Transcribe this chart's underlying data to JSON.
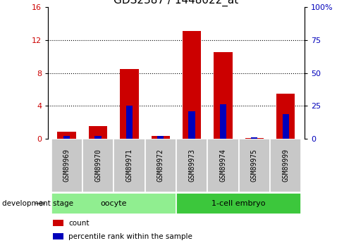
{
  "title": "GDS2387 / 1448022_at",
  "samples": [
    "GSM89969",
    "GSM89970",
    "GSM89971",
    "GSM89972",
    "GSM89973",
    "GSM89974",
    "GSM89975",
    "GSM89999"
  ],
  "count_values": [
    0.82,
    1.5,
    8.5,
    0.3,
    13.1,
    10.5,
    0.05,
    5.5
  ],
  "percentile_values": [
    2.0,
    2.0,
    25.0,
    1.8,
    20.6,
    26.3,
    0.8,
    18.8
  ],
  "ylim_left": [
    0,
    16
  ],
  "ylim_right": [
    0,
    100
  ],
  "yticks_left": [
    0,
    4,
    8,
    12,
    16
  ],
  "yticks_right": [
    0,
    25,
    50,
    75,
    100
  ],
  "groups": [
    {
      "label": "oocyte",
      "indices": [
        0,
        1,
        2,
        3
      ],
      "color": "#90EE90"
    },
    {
      "label": "1-cell embryo",
      "indices": [
        4,
        5,
        6,
        7
      ],
      "color": "#3CC73C"
    }
  ],
  "group_label": "development stage",
  "bar_color_red": "#CC0000",
  "bar_color_blue": "#0000BB",
  "bar_width": 0.6,
  "background_color": "#FFFFFF",
  "tick_color_left": "#CC0000",
  "tick_color_right": "#0000BB",
  "legend_items": [
    {
      "label": "count",
      "color": "#CC0000"
    },
    {
      "label": "percentile rank within the sample",
      "color": "#0000BB"
    }
  ],
  "sample_box_color": "#C8C8C8",
  "title_fontsize": 11,
  "tick_fontsize": 8,
  "label_fontsize": 7
}
